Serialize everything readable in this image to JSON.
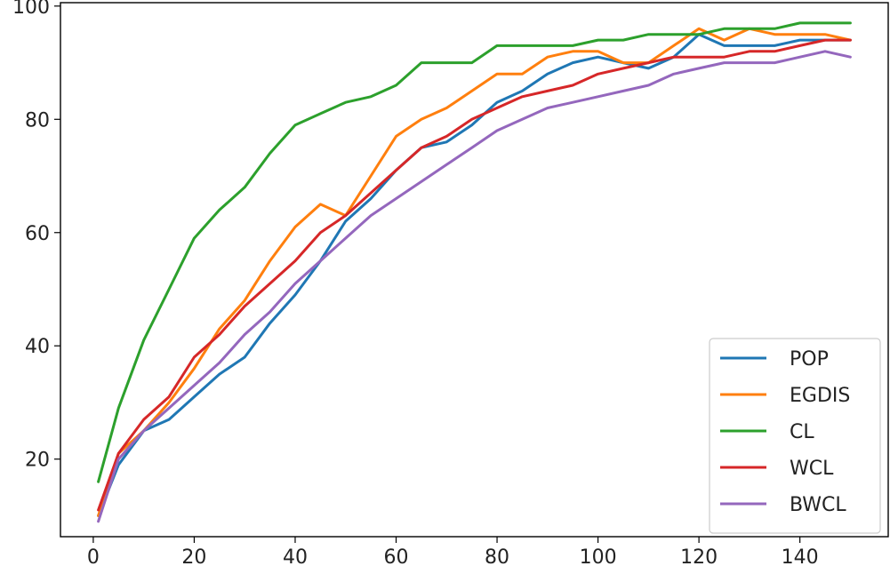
{
  "chart_data": {
    "type": "line",
    "title": "",
    "xlabel": "",
    "ylabel": "",
    "xlim": [
      -6.5,
      157.5
    ],
    "ylim": [
      6.3,
      100.6
    ],
    "xticks": [
      0,
      20,
      40,
      60,
      80,
      100,
      120,
      140
    ],
    "yticks": [
      20,
      40,
      60,
      80,
      100
    ],
    "grid": false,
    "legend_position": "lower-right",
    "x": [
      1,
      5,
      10,
      15,
      20,
      25,
      30,
      35,
      40,
      45,
      50,
      55,
      60,
      65,
      70,
      75,
      80,
      85,
      90,
      95,
      100,
      105,
      110,
      115,
      120,
      125,
      130,
      135,
      140,
      145,
      150
    ],
    "series": [
      {
        "name": "POP",
        "color": "#1f77b4",
        "values": [
          10,
          19,
          25,
          27,
          31,
          35,
          38,
          44,
          49,
          55,
          62,
          66,
          71,
          75,
          76,
          79,
          83,
          85,
          88,
          90,
          91,
          90,
          89,
          91,
          95,
          93,
          93,
          93,
          94,
          94,
          94
        ]
      },
      {
        "name": "EGDIS",
        "color": "#ff7f0e",
        "values": [
          10,
          21,
          25,
          30,
          36,
          43,
          48,
          55,
          61,
          65,
          63,
          70,
          77,
          80,
          82,
          85,
          88,
          88,
          91,
          92,
          92,
          90,
          90,
          93,
          96,
          94,
          96,
          95,
          95,
          95,
          94
        ]
      },
      {
        "name": "CL",
        "color": "#2ca02c",
        "values": [
          16,
          29,
          41,
          50,
          59,
          64,
          68,
          74,
          79,
          81,
          83,
          84,
          86,
          90,
          90,
          90,
          93,
          93,
          93,
          93,
          94,
          94,
          95,
          95,
          95,
          96,
          96,
          96,
          97,
          97,
          97
        ]
      },
      {
        "name": "WCL",
        "color": "#d62728",
        "values": [
          11,
          21,
          27,
          31,
          38,
          42,
          47,
          51,
          55,
          60,
          63,
          67,
          71,
          75,
          77,
          80,
          82,
          84,
          85,
          86,
          88,
          89,
          90,
          91,
          91,
          91,
          92,
          92,
          93,
          94,
          94
        ]
      },
      {
        "name": "BWCL",
        "color": "#9467bd",
        "values": [
          9,
          20,
          25,
          29,
          33,
          37,
          42,
          46,
          51,
          55,
          59,
          63,
          66,
          69,
          72,
          75,
          78,
          80,
          82,
          83,
          84,
          85,
          86,
          88,
          89,
          90,
          90,
          90,
          91,
          92,
          91
        ]
      }
    ]
  }
}
